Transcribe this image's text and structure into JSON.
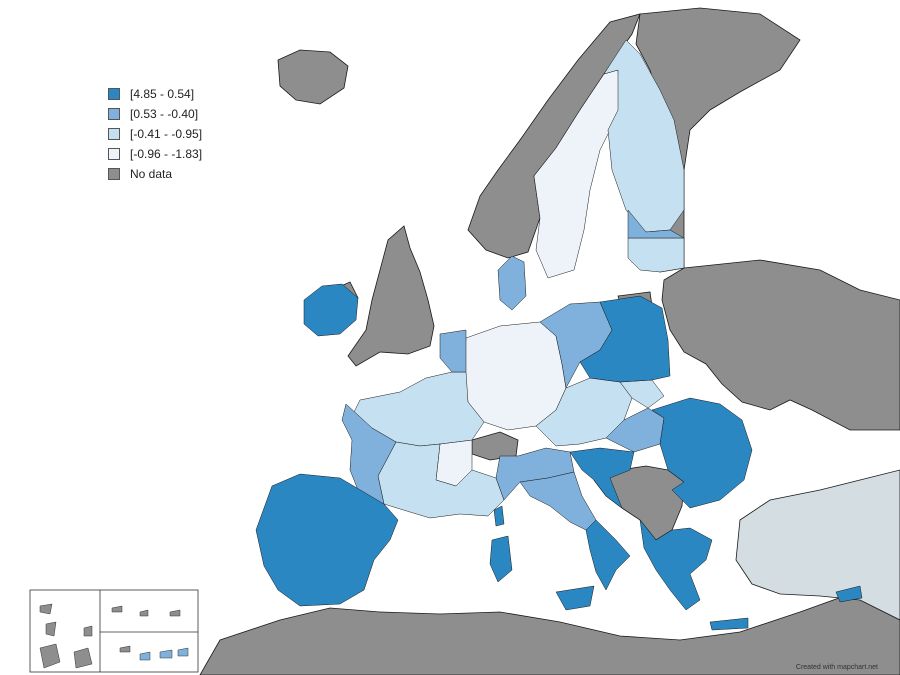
{
  "legend": {
    "items": [
      {
        "label": "[4.85 - 0.54]",
        "color": "#2b87c2"
      },
      {
        "label": "[0.53 - -0.40]",
        "color": "#7fb1dc"
      },
      {
        "label": "[-0.41 - -0.95]",
        "color": "#c4e0f1"
      },
      {
        "label": "[-0.96 - -1.83]",
        "color": "#eef2f9"
      },
      {
        "label": "No data",
        "color": "#8e8e8e"
      }
    ]
  },
  "colors": {
    "sea": "#ffffff",
    "outside": "#8e8e8e",
    "turkey": "#d3dde2",
    "border": "#1a1a1a"
  },
  "credit": "Created with mapchart.net"
}
